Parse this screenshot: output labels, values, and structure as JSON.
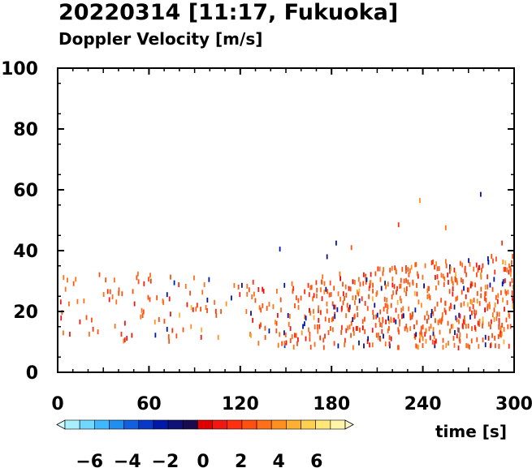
{
  "title": "20220314 [11:17, Fukuoka]",
  "subtitle": "Doppler Velocity [m/s]",
  "chart_data": {
    "type": "scatter",
    "title": "20220314 [11:17, Fukuoka]",
    "subtitle": "Doppler Velocity [m/s]",
    "xlabel": "time [s]",
    "ylabel": "",
    "xlim": [
      0,
      300
    ],
    "ylim": [
      0,
      100
    ],
    "xticks": [
      "0",
      "60",
      "120",
      "180",
      "240",
      "300"
    ],
    "yticks": [
      "0",
      "20",
      "40",
      "60",
      "80",
      "100"
    ],
    "grid": false,
    "colorbar": {
      "ticks": [
        "−6",
        "−4",
        "−2",
        "0",
        "2",
        "4",
        "6"
      ],
      "tick_values": [
        -6,
        -4,
        -2,
        0,
        2,
        4,
        6
      ],
      "range": [
        -8,
        8
      ],
      "colors_negative": [
        "#d8ffff",
        "#a8f0ff",
        "#70d8ff",
        "#40b8ff",
        "#2090f0",
        "#1060e0",
        "#0838c8",
        "#0018a8",
        "#101078",
        "#1a0a50"
      ],
      "colors_positive": [
        "#e00000",
        "#f01810",
        "#ff3010",
        "#ff5010",
        "#ff7018",
        "#ff9020",
        "#ffb030",
        "#ffd050",
        "#ffe878",
        "#fff4a8",
        "#fffad0"
      ]
    },
    "dominant_color": "#ff5a10",
    "outlier_points": [
      {
        "x": 146,
        "y": 40.5,
        "v": -2.5
      },
      {
        "x": 177,
        "y": 38,
        "v": -1.5
      },
      {
        "x": 183,
        "y": 42.5,
        "v": -2.5
      },
      {
        "x": 193,
        "y": 41,
        "v": 2.5
      },
      {
        "x": 224,
        "y": 48.5,
        "v": 1.5
      },
      {
        "x": 238,
        "y": 56.5,
        "v": 3.5
      },
      {
        "x": 255,
        "y": 47.5,
        "v": 3
      },
      {
        "x": 278,
        "y": 58.5,
        "v": -2.5
      },
      {
        "x": 292,
        "y": 42.5,
        "v": 1.5
      }
    ],
    "density_profile": [
      {
        "x": 0,
        "y_low": 10,
        "y_high": 32,
        "density": 0.35
      },
      {
        "x": 60,
        "y_low": 10,
        "y_high": 33,
        "density": 0.4
      },
      {
        "x": 120,
        "y_low": 9,
        "y_high": 30,
        "density": 0.45
      },
      {
        "x": 160,
        "y_low": 8,
        "y_high": 30,
        "density": 0.7
      },
      {
        "x": 180,
        "y_low": 8,
        "y_high": 32,
        "density": 0.85
      },
      {
        "x": 240,
        "y_low": 8,
        "y_high": 36,
        "density": 0.95
      },
      {
        "x": 300,
        "y_low": 8,
        "y_high": 40,
        "density": 1.0
      }
    ]
  }
}
